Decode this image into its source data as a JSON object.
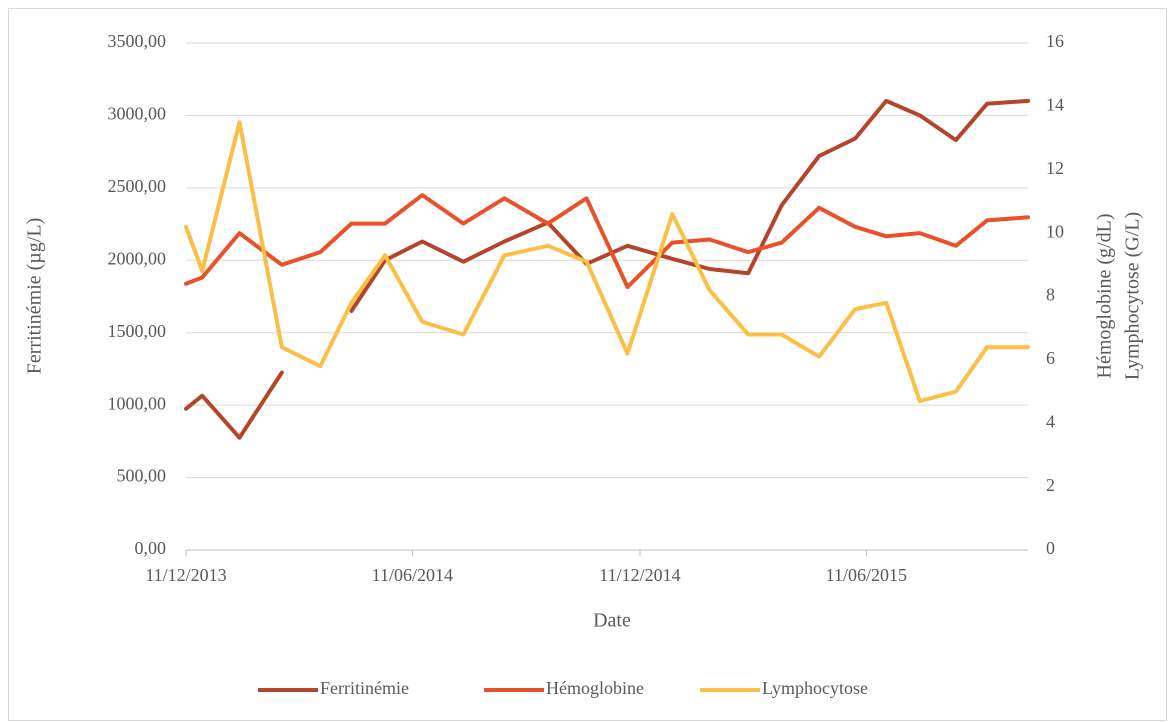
{
  "chart_data": {
    "type": "line",
    "xlabel": "Date",
    "ylabel": "Ferritinémie (µg/L)",
    "y2label": [
      "Hémoglobine (g/dL)",
      "Lymphocytose (G/L)"
    ],
    "x": [
      "11/12/2013",
      "24/12/2013",
      "23/01/2014",
      "26/02/2014",
      "29/03/2014",
      "23/04/2014",
      "20/05/2014",
      "19/06/2014",
      "22/07/2014",
      "24/08/2014",
      "28/09/2014",
      "29/10/2014",
      "01/12/2014",
      "06/01/2015",
      "05/02/2015",
      "08/03/2015",
      "04/04/2015",
      "04/05/2015",
      "02/06/2015",
      "27/06/2015",
      "24/07/2015",
      "22/08/2015",
      "16/09/2015",
      "19/10/2015"
    ],
    "series": [
      {
        "name": "Ferritinémie",
        "color": "#b5452a",
        "values": [
          975,
          1065,
          775,
          1225,
          null,
          1650,
          2000,
          2130,
          1990,
          2130,
          2260,
          1975,
          2100,
          2010,
          1940,
          1910,
          2380,
          2720,
          2840,
          3100,
          3000,
          2830,
          3080,
          3100
        ]
      },
      {
        "name": "Hémoglobine",
        "color": "#e8512a",
        "axis": "y2",
        "values": [
          8.4,
          8.6,
          10.0,
          9.0,
          9.4,
          10.3,
          10.3,
          11.2,
          10.3,
          11.1,
          10.3,
          11.1,
          8.3,
          9.7,
          9.8,
          9.4,
          9.7,
          10.8,
          10.2,
          9.9,
          10.0,
          9.6,
          10.4,
          10.5
        ]
      },
      {
        "name": "Lymphocytose",
        "color": "#fbbf45",
        "axis": "y2",
        "values": [
          10.2,
          8.8,
          13.5,
          6.4,
          5.8,
          7.8,
          9.3,
          7.2,
          6.8,
          9.3,
          9.6,
          9.1,
          6.2,
          10.6,
          8.2,
          6.8,
          6.8,
          6.1,
          7.6,
          7.8,
          4.7,
          5.0,
          6.4,
          6.4
        ]
      }
    ],
    "xlim": [
      "11/12/2013",
      "19/10/2015"
    ],
    "xticks": [
      "11/12/2013",
      "11/06/2014",
      "11/12/2014",
      "11/06/2015"
    ],
    "ylim": [
      0,
      3500
    ],
    "yticks": [
      {
        "value": 0,
        "label": "0,00"
      },
      {
        "value": 500,
        "label": "500,00"
      },
      {
        "value": 1000,
        "label": "1000,00"
      },
      {
        "value": 1500,
        "label": "1500,00"
      },
      {
        "value": 2000,
        "label": "2000,00"
      },
      {
        "value": 2500,
        "label": "2500,00"
      },
      {
        "value": 3000,
        "label": "3000,00"
      },
      {
        "value": 3500,
        "label": "3500,00"
      }
    ],
    "y2lim": [
      0,
      16
    ],
    "y2ticks": [
      0,
      2,
      4,
      6,
      8,
      10,
      12,
      14,
      16
    ],
    "grid": true,
    "legend": "bottom"
  }
}
